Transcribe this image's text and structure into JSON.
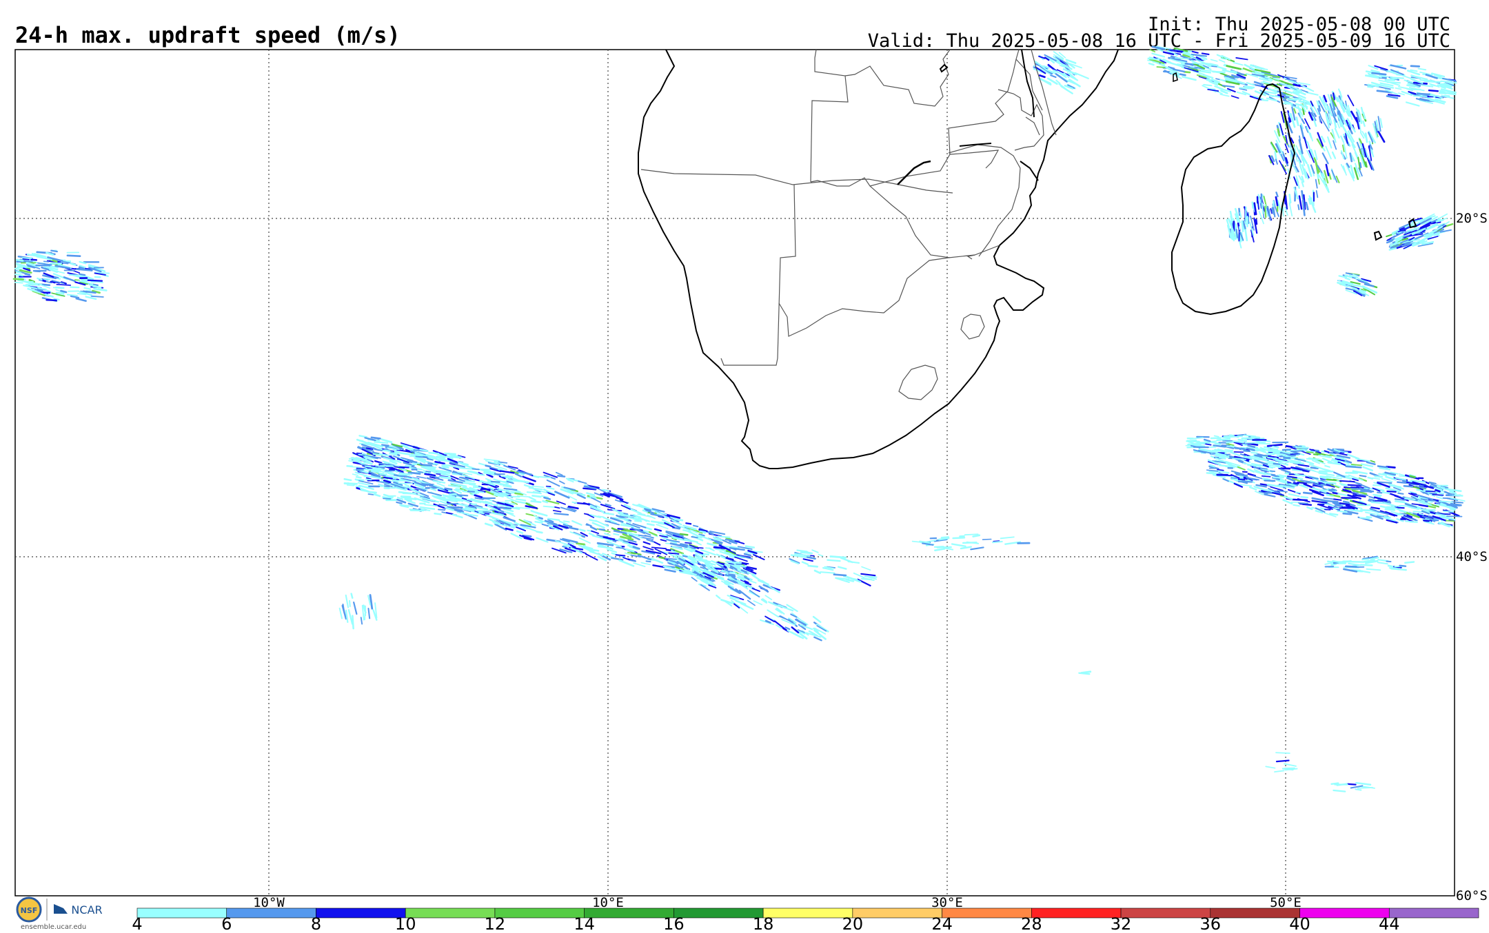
{
  "header": {
    "title": "24-h max. updraft speed (m/s)",
    "init": "Init: Thu 2025-05-08 00 UTC",
    "valid": "Valid: Thu 2025-05-08 16 UTC - Fri 2025-05-09 16 UTC"
  },
  "map": {
    "lon_labels": [
      "10°W",
      "10°E",
      "30°E",
      "50°E"
    ],
    "lat_labels": [
      "20°S",
      "40°S",
      "60°S"
    ]
  },
  "colorbar": {
    "ticks": [
      "4",
      "6",
      "8",
      "10",
      "12",
      "14",
      "16",
      "18",
      "20",
      "24",
      "28",
      "32",
      "36",
      "40",
      "44"
    ],
    "colors": [
      "#99ffff",
      "#5599ee",
      "#1111ee",
      "#77dd55",
      "#55cc44",
      "#33aa33",
      "#229933",
      "#ffff66",
      "#ffcc66",
      "#ff8844",
      "#ff2222",
      "#cc4444",
      "#aa3333",
      "#ee00ee",
      "#9966cc"
    ]
  },
  "logo": {
    "nsf": "NSF",
    "ncar": "NCAR",
    "url": "ensemble.ucar.edu"
  }
}
